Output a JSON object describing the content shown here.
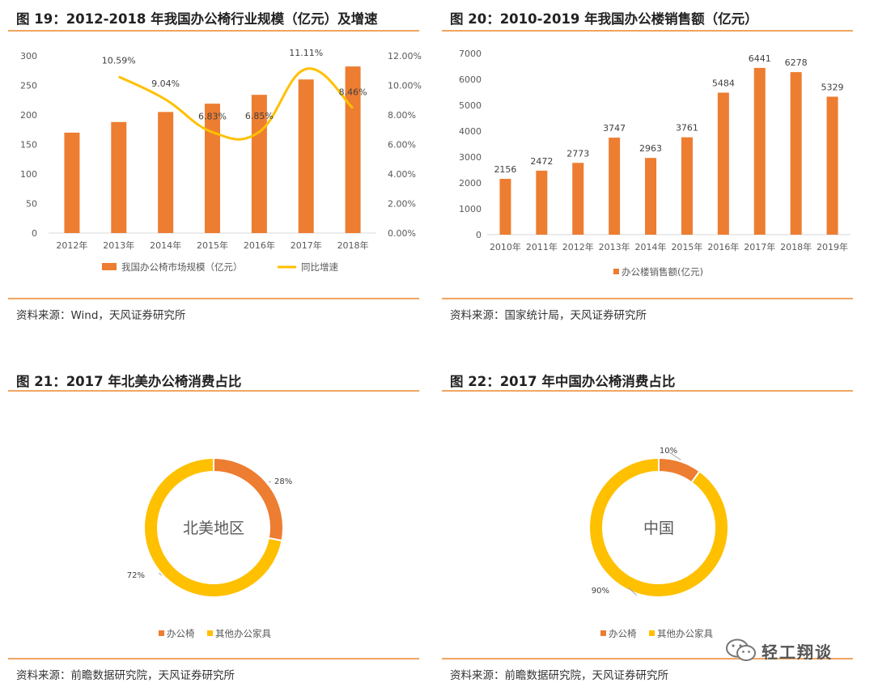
{
  "colors": {
    "orange": "#ED7D31",
    "yellow": "#FFC000",
    "line": "#FFC000",
    "rule": "#F0A560"
  },
  "panels": {
    "p19": {
      "title": "图 19：2012-2018 年我国办公椅行业规模（亿元）及增速",
      "source": "资料来源：Wind，天风证券研究所"
    },
    "p20": {
      "title": "图 20：2010-2019 年我国办公楼销售额（亿元）",
      "source": "资料来源：国家统计局，天风证券研究所"
    },
    "p21": {
      "title": "图 21：2017 年北美办公椅消费占比",
      "source": "资料来源：前瞻数据研究院，天风证券研究所"
    },
    "p22": {
      "title": "图 22：2017 年中国办公椅消费占比",
      "source": "资料来源：前瞻数据研究院，天风证券研究所"
    }
  },
  "watermark": {
    "text": "轻工翔谈",
    "icon": "wechat-icon"
  },
  "chart_data": [
    {
      "id": "c19",
      "type": "bar",
      "categories": [
        "2012年",
        "2013年",
        "2014年",
        "2015年",
        "2016年",
        "2017年",
        "2018年"
      ],
      "series": [
        {
          "name": "我国办公椅市场规模（亿元）",
          "kind": "bar",
          "axis": "left",
          "color": "#ED7D31",
          "values": [
            170,
            188,
            205,
            219,
            234,
            260,
            282
          ]
        },
        {
          "name": "同比增速",
          "kind": "line",
          "axis": "right",
          "color": "#FFC000",
          "values": [
            null,
            10.59,
            9.04,
            6.83,
            6.85,
            11.11,
            8.46
          ],
          "labels": [
            null,
            "10.59%",
            "9.04%",
            "6.83%",
            "6.85%",
            "11.11%",
            "8.46%"
          ]
        }
      ],
      "ylim": [
        0,
        300
      ],
      "yticks": [
        "0",
        "50",
        "100",
        "150",
        "200",
        "250",
        "300"
      ],
      "y2lim": [
        0,
        12
      ],
      "y2ticks": [
        "0.00%",
        "2.00%",
        "4.00%",
        "6.00%",
        "8.00%",
        "10.00%",
        "12.00%"
      ],
      "legend_position": "bottom",
      "grid": false
    },
    {
      "id": "c20",
      "type": "bar",
      "categories": [
        "2010年",
        "2011年",
        "2012年",
        "2013年",
        "2014年",
        "2015年",
        "2016年",
        "2017年",
        "2018年",
        "2019年"
      ],
      "series": [
        {
          "name": "办公楼销售额(亿元)",
          "color": "#ED7D31",
          "values": [
            2156,
            2472,
            2773,
            3747,
            2963,
            3761,
            5484,
            6441,
            6278,
            5329
          ]
        }
      ],
      "ylim": [
        0,
        7000
      ],
      "yticks": [
        "0",
        "1000",
        "2000",
        "3000",
        "4000",
        "5000",
        "6000",
        "7000"
      ],
      "legend_position": "bottom",
      "grid": false
    },
    {
      "id": "c21",
      "type": "pie",
      "donut": true,
      "center_label": "北美地区",
      "slices": [
        {
          "name": "办公椅",
          "value": 28,
          "label": "28%",
          "color": "#ED7D31"
        },
        {
          "name": "其他办公家具",
          "value": 72,
          "label": "72%",
          "color": "#FFC000"
        }
      ],
      "legend_position": "bottom"
    },
    {
      "id": "c22",
      "type": "pie",
      "donut": true,
      "center_label": "中国",
      "slices": [
        {
          "name": "办公椅",
          "value": 10,
          "label": "10%",
          "color": "#ED7D31"
        },
        {
          "name": "其他办公家具",
          "value": 90,
          "label": "90%",
          "color": "#FFC000"
        }
      ],
      "legend_position": "bottom"
    }
  ]
}
